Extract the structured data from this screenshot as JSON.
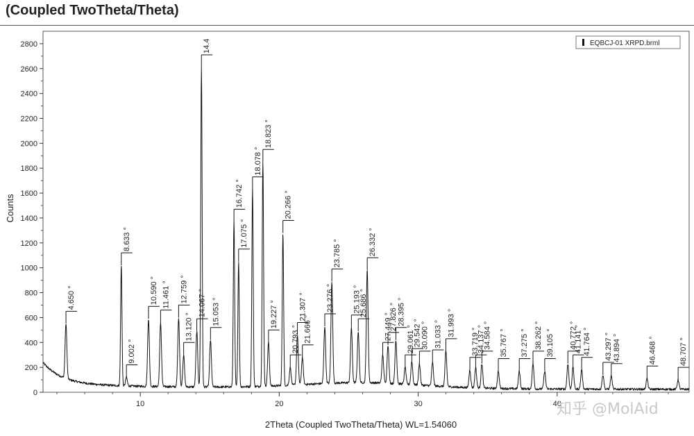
{
  "header": {
    "title": "(Coupled TwoTheta/Theta)"
  },
  "chart_data": {
    "type": "line",
    "xlabel": "2Theta (Coupled TwoTheta/Theta) WL=1.54060",
    "ylabel": "Counts",
    "xlim": [
      3,
      49.5
    ],
    "ylim": [
      0,
      2900
    ],
    "x_ticks": [
      "10",
      "20",
      "30",
      "40"
    ],
    "x_tick_values": [
      10,
      20,
      30,
      40
    ],
    "y_ticks": [
      "0",
      "200",
      "400",
      "600",
      "800",
      "1000",
      "1200",
      "1400",
      "1600",
      "1800",
      "2000",
      "2200",
      "2400",
      "2600",
      "2800"
    ],
    "y_tick_values": [
      0,
      200,
      400,
      600,
      800,
      1000,
      1200,
      1400,
      1600,
      1800,
      2000,
      2200,
      2400,
      2600,
      2800
    ],
    "legend": {
      "entries": [
        "EQBCJ-01 XRPD.brml"
      ],
      "placement": "top-right"
    },
    "series": [
      {
        "peaks": [
          {
            "label": "4.650 °",
            "x": 4.65,
            "y": 550
          },
          {
            "label": "8.633 °",
            "x": 8.633,
            "y": 1020
          },
          {
            "label": "9.002 °",
            "x": 9.002,
            "y": 120
          },
          {
            "label": "10.590 °",
            "x": 10.59,
            "y": 590
          },
          {
            "label": "11.461 °",
            "x": 11.461,
            "y": 560
          },
          {
            "label": "12.759 °",
            "x": 12.759,
            "y": 600
          },
          {
            "label": "13.120 °",
            "x": 13.12,
            "y": 300
          },
          {
            "label": "14.4",
            "x": 14.4,
            "y": 2610
          },
          {
            "label": "14.067 °",
            "x": 14.067,
            "y": 490
          },
          {
            "label": "15.053 °",
            "x": 15.053,
            "y": 420
          },
          {
            "label": "16.742 °",
            "x": 16.742,
            "y": 1370
          },
          {
            "label": "17.075 °",
            "x": 17.075,
            "y": 1050
          },
          {
            "label": "18.078 °",
            "x": 18.078,
            "y": 1630
          },
          {
            "label": "18.823 °",
            "x": 18.823,
            "y": 1850
          },
          {
            "label": "19.227 °",
            "x": 19.227,
            "y": 400
          },
          {
            "label": "20.266 °",
            "x": 20.266,
            "y": 1280
          },
          {
            "label": "20.793 °",
            "x": 20.793,
            "y": 200
          },
          {
            "label": "21.307 °",
            "x": 21.307,
            "y": 460
          },
          {
            "label": "21.666 °",
            "x": 21.666,
            "y": 280
          },
          {
            "label": "23.276 °",
            "x": 23.276,
            "y": 530
          },
          {
            "label": "23.785 °",
            "x": 23.785,
            "y": 890
          },
          {
            "label": "25.193 °",
            "x": 25.193,
            "y": 520
          },
          {
            "label": "25.686 °",
            "x": 25.686,
            "y": 490
          },
          {
            "label": "26.332 °",
            "x": 26.332,
            "y": 980
          },
          {
            "label": "27.449 °",
            "x": 27.449,
            "y": 300
          },
          {
            "label": "27.826 °",
            "x": 27.826,
            "y": 380
          },
          {
            "label": "28.395 °",
            "x": 28.395,
            "y": 420
          },
          {
            "label": "29.061 °",
            "x": 29.061,
            "y": 200
          },
          {
            "label": "29.542 °",
            "x": 29.542,
            "y": 250
          },
          {
            "label": "30.090 °",
            "x": 30.09,
            "y": 230
          },
          {
            "label": "31.033 °",
            "x": 31.033,
            "y": 240
          },
          {
            "label": "31.993 °",
            "x": 31.993,
            "y": 330
          },
          {
            "label": "33.719 °",
            "x": 33.719,
            "y": 180
          },
          {
            "label": "34.137 °",
            "x": 34.137,
            "y": 200
          },
          {
            "label": "34.584 °",
            "x": 34.584,
            "y": 230
          },
          {
            "label": "35.767 °",
            "x": 35.767,
            "y": 170
          },
          {
            "label": "37.275 °",
            "x": 37.275,
            "y": 170
          },
          {
            "label": "38.262 °",
            "x": 38.262,
            "y": 230
          },
          {
            "label": "39.105 °",
            "x": 39.105,
            "y": 170
          },
          {
            "label": "40.772 °",
            "x": 40.772,
            "y": 230
          },
          {
            "label": "41.141 °",
            "x": 41.141,
            "y": 200
          },
          {
            "label": "41.764 °",
            "x": 41.764,
            "y": 180
          },
          {
            "label": "43.297 °",
            "x": 43.297,
            "y": 140
          },
          {
            "label": "43.894 °",
            "x": 43.894,
            "y": 130
          },
          {
            "label": "46.468 °",
            "x": 46.468,
            "y": 110
          },
          {
            "label": "48.707 °",
            "x": 48.707,
            "y": 100
          }
        ]
      }
    ]
  },
  "watermark": {
    "text": "知乎 @MolAid"
  },
  "colors": {
    "line": "#111111",
    "background": "#ffffff",
    "frame": "#555555"
  }
}
